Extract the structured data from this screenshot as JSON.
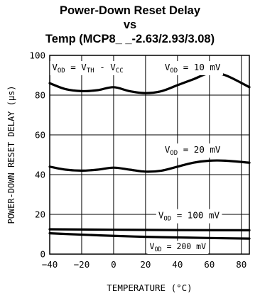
{
  "chart_data": {
    "type": "line",
    "title_lines": [
      "Power-Down Reset Delay",
      "vs",
      "Temp (MCP8_ _-2.63/2.93/3.08)"
    ],
    "xlabel": "TEMPERATURE (°C)",
    "ylabel": "POWER-DOWN RESET DELAY (µs)",
    "xlim": [
      -40,
      85
    ],
    "ylim": [
      0,
      100
    ],
    "x_ticks": [
      -40,
      -20,
      0,
      20,
      40,
      60,
      80
    ],
    "y_ticks": [
      0,
      20,
      40,
      60,
      80,
      100
    ],
    "grid": true,
    "series": [
      {
        "name": "VOD = 10 mV",
        "x": [
          -40,
          -30,
          -20,
          -10,
          0,
          10,
          20,
          30,
          40,
          50,
          60,
          70,
          85
        ],
        "y": [
          86,
          83,
          82,
          82.5,
          84,
          82,
          81,
          82,
          85,
          88,
          91,
          90,
          84
        ]
      },
      {
        "name": "VOD = 20 mV",
        "x": [
          -40,
          -30,
          -20,
          -10,
          0,
          10,
          20,
          30,
          40,
          50,
          60,
          70,
          85
        ],
        "y": [
          44,
          42.5,
          42,
          42.5,
          43.5,
          42.5,
          41.5,
          42,
          44,
          46,
          47,
          47,
          46
        ]
      },
      {
        "name": "VOD = 100 mV",
        "x": [
          -40,
          0,
          40,
          85
        ],
        "y": [
          12.5,
          12.3,
          12.1,
          12
        ]
      },
      {
        "name": "VOD = 200 mV",
        "x": [
          -40,
          -20,
          0,
          20,
          40,
          60,
          85
        ],
        "y": [
          10.5,
          9.8,
          9.2,
          8.7,
          8.4,
          8.1,
          7.8
        ]
      }
    ],
    "annotations": {
      "formula": {
        "parts": [
          "V",
          "OD",
          " = V",
          "TH",
          " - V",
          "CC"
        ]
      },
      "label_10": {
        "main": "V",
        "sub": "OD",
        "rest": " = 10 mV"
      },
      "label_20": {
        "main": "V",
        "sub": "OD",
        "rest": " = 20 mV"
      },
      "label_100": {
        "main": "V",
        "sub": "OD",
        "rest": " = 100 mV"
      },
      "label_200": {
        "main": "V",
        "sub": "OD",
        "rest": " = 200 mV"
      }
    }
  }
}
